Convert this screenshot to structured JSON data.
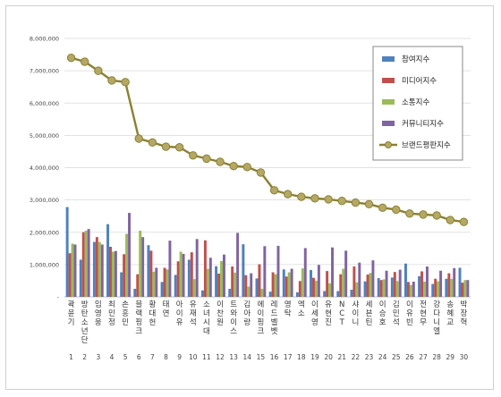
{
  "chart_data": {
    "type": "bar",
    "ylim": [
      0,
      8000000
    ],
    "yticks": [
      "-",
      "1,000,000",
      "2,000,000",
      "3,000,000",
      "4,000,000",
      "5,000,000",
      "6,000,000",
      "7,000,000",
      "8,000,000"
    ],
    "grid": true,
    "legend_position": "right",
    "categories": [
      "곽윤기",
      "방탄소년단",
      "임영웅",
      "최민정",
      "손흥민",
      "블랙핑크",
      "황대헌",
      "태연",
      "아이유",
      "유재석",
      "소녀시대",
      "이찬원",
      "트와이스",
      "김아랑",
      "에이핑크",
      "레드벨벳",
      "영탁",
      "엑소",
      "이세영",
      "유현진",
      "NCT",
      "샤이니",
      "세븐틴",
      "이승호",
      "김민석",
      "이유빈",
      "전현무",
      "강다니엘",
      "송혜교",
      "박장혁"
    ],
    "numbers": [
      "1",
      "2",
      "3",
      "4",
      "5",
      "6",
      "7",
      "8",
      "9",
      "10",
      "11",
      "12",
      "13",
      "14",
      "15",
      "16",
      "17",
      "18",
      "19",
      "20",
      "21",
      "22",
      "23",
      "24",
      "25",
      "26",
      "27",
      "28",
      "29",
      "30"
    ],
    "series": [
      {
        "name": "참여지수",
        "color": "#4F81BD",
        "values": [
          2780000,
          1150000,
          1700000,
          2250000,
          760000,
          250000,
          1600000,
          460000,
          680000,
          1150000,
          200000,
          950000,
          250000,
          1630000,
          570000,
          160000,
          850000,
          140000,
          830000,
          180000,
          180000,
          220000,
          480000,
          580000,
          600000,
          1030000,
          640000,
          400000,
          560000,
          900000
        ]
      },
      {
        "name": "미디어지수",
        "color": "#C0504D",
        "values": [
          1350000,
          2000000,
          1850000,
          1550000,
          1320000,
          700000,
          1430000,
          900000,
          1100000,
          1380000,
          1750000,
          720000,
          940000,
          670000,
          1010000,
          760000,
          630000,
          490000,
          590000,
          800000,
          700000,
          940000,
          690000,
          520000,
          770000,
          460000,
          790000,
          560000,
          730000,
          440000
        ]
      },
      {
        "name": "소통지수",
        "color": "#9BBB59",
        "values": [
          1650000,
          2050000,
          1700000,
          1400000,
          1950000,
          2050000,
          780000,
          850000,
          1400000,
          550000,
          870000,
          1110000,
          750000,
          320000,
          250000,
          700000,
          760000,
          880000,
          500000,
          420000,
          870000,
          450000,
          740000,
          540000,
          490000,
          370000,
          470000,
          480000,
          560000,
          520000
        ]
      },
      {
        "name": "커뮤니티지수",
        "color": "#8064A2",
        "values": [
          1620000,
          2100000,
          1620000,
          1420000,
          2600000,
          1850000,
          900000,
          1740000,
          1330000,
          1790000,
          1210000,
          1310000,
          1980000,
          730000,
          1570000,
          1580000,
          870000,
          1510000,
          990000,
          1530000,
          1430000,
          1060000,
          1130000,
          810000,
          840000,
          470000,
          940000,
          810000,
          890000,
          520000
        ]
      },
      {
        "name": "브랜드평판지수",
        "color": "#8B8130",
        "type": "line",
        "values": [
          7400000,
          7280000,
          7000000,
          6700000,
          6650000,
          4900000,
          4780000,
          4650000,
          4630000,
          4380000,
          4280000,
          4180000,
          4050000,
          4020000,
          3850000,
          3300000,
          3180000,
          3100000,
          3050000,
          3020000,
          2970000,
          2920000,
          2870000,
          2760000,
          2700000,
          2580000,
          2550000,
          2520000,
          2380000,
          2320000
        ]
      }
    ]
  }
}
